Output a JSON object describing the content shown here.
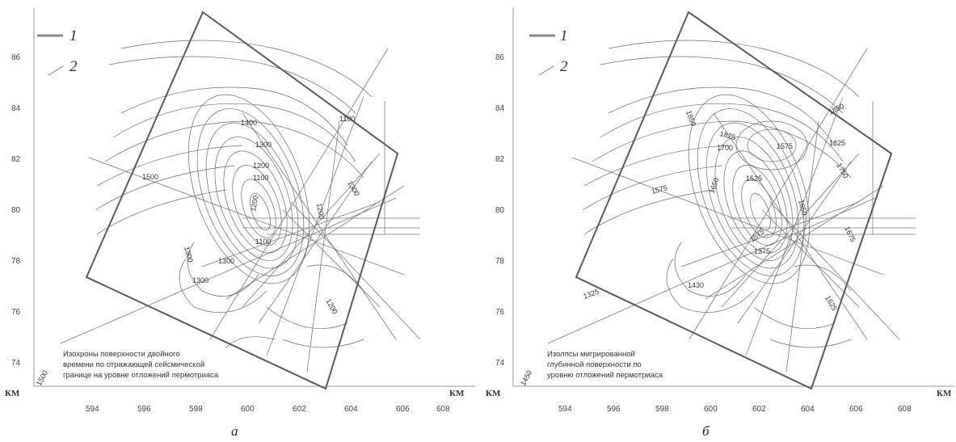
{
  "figures": [
    {
      "id": "a",
      "letter": "а",
      "legend": [
        "1",
        "2"
      ],
      "y_ticks": [
        "86",
        "84",
        "82",
        "80",
        "78",
        "76",
        "74"
      ],
      "x_ticks": [
        "594",
        "596",
        "598",
        "600",
        "602",
        "604",
        "606",
        "608"
      ],
      "km_left": "КМ",
      "km_right": "КМ",
      "contour_labels": [
        "1400",
        "1100",
        "1300",
        "1500",
        "1200",
        "1100",
        "1300",
        "1200",
        "1200",
        "1300",
        "1100",
        "1300",
        "1200",
        "1300"
      ],
      "corner_value": "1500",
      "caption": [
        "Изохроны поверхности двойного",
        "времени по отражающей сейсмической",
        "границе на уровне отложений пермотриаса"
      ]
    },
    {
      "id": "b",
      "letter": "б",
      "legend": [
        "1",
        "2"
      ],
      "y_ticks": [
        "86",
        "84",
        "82",
        "80",
        "78",
        "76",
        "74"
      ],
      "x_ticks": [
        "594",
        "596",
        "598",
        "600",
        "602",
        "604",
        "606",
        "608"
      ],
      "km_left": "КМ",
      "km_right": "КМ",
      "contour_labels": [
        "1850",
        "1850",
        "1825",
        "1825",
        "1700",
        "1575",
        "1575",
        "1750",
        "1650",
        "1525",
        "1650",
        "1675",
        "1575",
        "1375",
        "1430",
        "1325",
        "1625"
      ],
      "corner_value": "1450",
      "caption": [
        "Изолпсы мигрированной",
        "глубинной поверхности по",
        "уровню отложений пермотриаса"
      ]
    }
  ],
  "colors": {
    "frame": "#5a5a5a",
    "contour": "#6a6a6a",
    "line": "#7a7a7a"
  }
}
